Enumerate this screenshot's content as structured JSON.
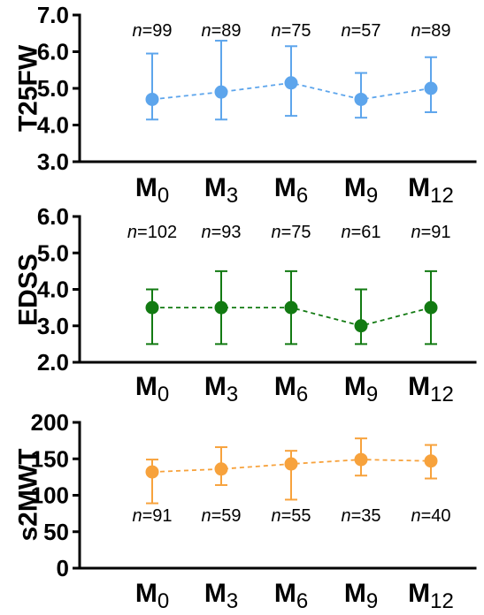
{
  "chart_data": [
    {
      "type": "line",
      "ylabel": "T25FW",
      "ylim": [
        3.0,
        7.0
      ],
      "yticks": [
        "3.0",
        "4.0",
        "5.0",
        "6.0",
        "7.0"
      ],
      "color": "#5da5ec",
      "categories": [
        {
          "base": "M",
          "sub": "0"
        },
        {
          "base": "M",
          "sub": "3"
        },
        {
          "base": "M",
          "sub": "6"
        },
        {
          "base": "M",
          "sub": "9"
        },
        {
          "base": "M",
          "sub": "12"
        }
      ],
      "values": [
        4.7,
        4.9,
        5.15,
        4.7,
        5.0
      ],
      "error_low": [
        4.15,
        4.15,
        4.25,
        4.2,
        4.35
      ],
      "error_high": [
        5.95,
        6.3,
        6.15,
        5.42,
        5.85
      ],
      "n_prefix": "n",
      "n_labels": [
        "=99",
        "=89",
        "=75",
        "=57",
        "=89"
      ],
      "n_label_position": "above"
    },
    {
      "type": "line",
      "ylabel": "EDSS",
      "ylim": [
        2.0,
        6.0
      ],
      "yticks": [
        "2.0",
        "3.0",
        "4.0",
        "5.0",
        "6.0"
      ],
      "color": "#127a12",
      "categories": [
        {
          "base": "M",
          "sub": "0"
        },
        {
          "base": "M",
          "sub": "3"
        },
        {
          "base": "M",
          "sub": "6"
        },
        {
          "base": "M",
          "sub": "9"
        },
        {
          "base": "M",
          "sub": "12"
        }
      ],
      "values": [
        3.5,
        3.5,
        3.5,
        3.0,
        3.5
      ],
      "error_low": [
        2.5,
        2.5,
        2.5,
        2.5,
        2.5
      ],
      "error_high": [
        4.0,
        4.5,
        4.5,
        4.0,
        4.5
      ],
      "n_prefix": "n",
      "n_labels": [
        "=102",
        "=93",
        "=75",
        "=61",
        "=91"
      ],
      "n_label_position": "above"
    },
    {
      "type": "line",
      "ylabel": "s2MWT",
      "ylim": [
        0,
        200
      ],
      "yticks": [
        "0",
        "50",
        "100",
        "150",
        "200"
      ],
      "color": "#f7a23c",
      "categories": [
        {
          "base": "M",
          "sub": "0"
        },
        {
          "base": "M",
          "sub": "3"
        },
        {
          "base": "M",
          "sub": "6"
        },
        {
          "base": "M",
          "sub": "9"
        },
        {
          "base": "M",
          "sub": "12"
        }
      ],
      "values": [
        132,
        136,
        143,
        149,
        147
      ],
      "error_low": [
        89,
        114,
        94,
        127,
        123
      ],
      "error_high": [
        149,
        166,
        161,
        178,
        169
      ],
      "n_prefix": "n",
      "n_labels": [
        "=91",
        "=59",
        "=55",
        "=35",
        "=40"
      ],
      "n_label_position": "below"
    }
  ]
}
